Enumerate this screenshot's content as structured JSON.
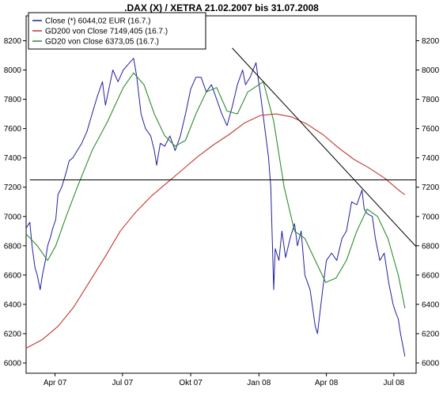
{
  "chart_data": {
    "type": "line",
    "title": ".DAX (X) / XETRA 21.02.2007 bis 31.07.2008",
    "xlabel": "",
    "ylabel": "",
    "x_range": [
      "2007-02-21",
      "2008-07-31"
    ],
    "ylim": [
      5930,
      8370
    ],
    "grid": false,
    "legend_position": "top-left",
    "x_ticks": [
      {
        "date": "2007-04-01",
        "label": "Apr 07"
      },
      {
        "date": "2007-07-01",
        "label": "Jul 07"
      },
      {
        "date": "2007-10-01",
        "label": "Okt 07"
      },
      {
        "date": "2008-01-01",
        "label": "Jan 08"
      },
      {
        "date": "2008-04-01",
        "label": "Apr 08"
      },
      {
        "date": "2008-07-01",
        "label": "Jul 08"
      }
    ],
    "y_ticks": [
      6000,
      6200,
      6400,
      6600,
      6800,
      7000,
      7200,
      7400,
      7600,
      7800,
      8000,
      8200
    ],
    "series": [
      {
        "name": "Close (*) 6044,02 EUR (16.7.)",
        "color": "#2020a0",
        "points": [
          [
            "2007-02-21",
            6920
          ],
          [
            "2007-02-26",
            6960
          ],
          [
            "2007-03-01",
            6800
          ],
          [
            "2007-03-05",
            6650
          ],
          [
            "2007-03-08",
            6600
          ],
          [
            "2007-03-12",
            6500
          ],
          [
            "2007-03-15",
            6600
          ],
          [
            "2007-03-19",
            6700
          ],
          [
            "2007-03-22",
            6800
          ],
          [
            "2007-03-26",
            6860
          ],
          [
            "2007-03-29",
            6920
          ],
          [
            "2007-04-02",
            6980
          ],
          [
            "2007-04-05",
            7150
          ],
          [
            "2007-04-10",
            7200
          ],
          [
            "2007-04-16",
            7300
          ],
          [
            "2007-04-20",
            7380
          ],
          [
            "2007-04-25",
            7400
          ],
          [
            "2007-05-01",
            7450
          ],
          [
            "2007-05-07",
            7500
          ],
          [
            "2007-05-14",
            7580
          ],
          [
            "2007-05-21",
            7700
          ],
          [
            "2007-05-28",
            7820
          ],
          [
            "2007-06-04",
            7920
          ],
          [
            "2007-06-08",
            7760
          ],
          [
            "2007-06-13",
            7880
          ],
          [
            "2007-06-18",
            8000
          ],
          [
            "2007-06-25",
            7920
          ],
          [
            "2007-07-02",
            8000
          ],
          [
            "2007-07-09",
            8040
          ],
          [
            "2007-07-16",
            8080
          ],
          [
            "2007-07-20",
            7960
          ],
          [
            "2007-07-26",
            7700
          ],
          [
            "2007-08-01",
            7600
          ],
          [
            "2007-08-08",
            7550
          ],
          [
            "2007-08-13",
            7450
          ],
          [
            "2007-08-16",
            7350
          ],
          [
            "2007-08-21",
            7500
          ],
          [
            "2007-08-27",
            7480
          ],
          [
            "2007-09-03",
            7550
          ],
          [
            "2007-09-10",
            7450
          ],
          [
            "2007-09-17",
            7550
          ],
          [
            "2007-09-24",
            7700
          ],
          [
            "2007-10-01",
            7870
          ],
          [
            "2007-10-08",
            7950
          ],
          [
            "2007-10-15",
            7950
          ],
          [
            "2007-10-22",
            7850
          ],
          [
            "2007-10-29",
            7900
          ],
          [
            "2007-11-05",
            7800
          ],
          [
            "2007-11-12",
            7700
          ],
          [
            "2007-11-19",
            7620
          ],
          [
            "2007-11-26",
            7750
          ],
          [
            "2007-12-03",
            7900
          ],
          [
            "2007-12-10",
            8000
          ],
          [
            "2007-12-14",
            7900
          ],
          [
            "2007-12-20",
            7950
          ],
          [
            "2007-12-28",
            8050
          ],
          [
            "2008-01-04",
            7800
          ],
          [
            "2008-01-09",
            7600
          ],
          [
            "2008-01-14",
            7400
          ],
          [
            "2008-01-17",
            7200
          ],
          [
            "2008-01-21",
            6500
          ],
          [
            "2008-01-23",
            6780
          ],
          [
            "2008-01-28",
            6700
          ],
          [
            "2008-02-01",
            6900
          ],
          [
            "2008-02-06",
            6720
          ],
          [
            "2008-02-12",
            6850
          ],
          [
            "2008-02-18",
            6950
          ],
          [
            "2008-02-22",
            6800
          ],
          [
            "2008-02-27",
            6900
          ],
          [
            "2008-03-03",
            6600
          ],
          [
            "2008-03-10",
            6500
          ],
          [
            "2008-03-17",
            6250
          ],
          [
            "2008-03-20",
            6200
          ],
          [
            "2008-03-27",
            6500
          ],
          [
            "2008-04-01",
            6700
          ],
          [
            "2008-04-08",
            6750
          ],
          [
            "2008-04-15",
            6700
          ],
          [
            "2008-04-22",
            6850
          ],
          [
            "2008-04-28",
            6900
          ],
          [
            "2008-05-05",
            7100
          ],
          [
            "2008-05-12",
            7080
          ],
          [
            "2008-05-19",
            7180
          ],
          [
            "2008-05-22",
            7050
          ],
          [
            "2008-05-26",
            7020
          ],
          [
            "2008-06-02",
            7000
          ],
          [
            "2008-06-06",
            6850
          ],
          [
            "2008-06-12",
            6700
          ],
          [
            "2008-06-18",
            6750
          ],
          [
            "2008-06-24",
            6550
          ],
          [
            "2008-06-30",
            6400
          ],
          [
            "2008-07-03",
            6350
          ],
          [
            "2008-07-07",
            6300
          ],
          [
            "2008-07-10",
            6200
          ],
          [
            "2008-07-16",
            6044
          ]
        ]
      },
      {
        "name": "GD200 von Close 7149,405 (16.7.)",
        "color": "#c0392b",
        "points": [
          [
            "2007-02-21",
            6100
          ],
          [
            "2007-03-15",
            6160
          ],
          [
            "2007-04-05",
            6250
          ],
          [
            "2007-04-26",
            6380
          ],
          [
            "2007-05-17",
            6550
          ],
          [
            "2007-06-07",
            6720
          ],
          [
            "2007-06-28",
            6900
          ],
          [
            "2007-07-19",
            7030
          ],
          [
            "2007-08-09",
            7140
          ],
          [
            "2007-08-30",
            7230
          ],
          [
            "2007-09-20",
            7320
          ],
          [
            "2007-10-11",
            7410
          ],
          [
            "2007-11-01",
            7490
          ],
          [
            "2007-11-22",
            7560
          ],
          [
            "2007-12-13",
            7640
          ],
          [
            "2008-01-03",
            7690
          ],
          [
            "2008-01-24",
            7700
          ],
          [
            "2008-02-14",
            7680
          ],
          [
            "2008-03-06",
            7630
          ],
          [
            "2008-03-27",
            7560
          ],
          [
            "2008-04-17",
            7470
          ],
          [
            "2008-05-08",
            7390
          ],
          [
            "2008-05-29",
            7330
          ],
          [
            "2008-06-19",
            7260
          ],
          [
            "2008-07-10",
            7170
          ],
          [
            "2008-07-16",
            7149
          ]
        ]
      },
      {
        "name": "GD20 von Close 6373,05 (16.7.)",
        "color": "#2e8b2e",
        "points": [
          [
            "2007-02-21",
            6880
          ],
          [
            "2007-03-08",
            6800
          ],
          [
            "2007-03-22",
            6700
          ],
          [
            "2007-04-02",
            6800
          ],
          [
            "2007-04-16",
            7000
          ],
          [
            "2007-05-01",
            7200
          ],
          [
            "2007-05-21",
            7450
          ],
          [
            "2007-06-11",
            7650
          ],
          [
            "2007-07-02",
            7880
          ],
          [
            "2007-07-16",
            7980
          ],
          [
            "2007-07-30",
            7900
          ],
          [
            "2007-08-13",
            7700
          ],
          [
            "2007-08-27",
            7550
          ],
          [
            "2007-09-10",
            7480
          ],
          [
            "2007-09-24",
            7520
          ],
          [
            "2007-10-08",
            7700
          ],
          [
            "2007-10-22",
            7850
          ],
          [
            "2007-11-05",
            7880
          ],
          [
            "2007-11-19",
            7720
          ],
          [
            "2007-12-03",
            7700
          ],
          [
            "2007-12-17",
            7850
          ],
          [
            "2008-01-07",
            7920
          ],
          [
            "2008-01-21",
            7650
          ],
          [
            "2008-02-04",
            7200
          ],
          [
            "2008-02-18",
            6900
          ],
          [
            "2008-03-03",
            6850
          ],
          [
            "2008-03-17",
            6700
          ],
          [
            "2008-03-31",
            6550
          ],
          [
            "2008-04-14",
            6580
          ],
          [
            "2008-04-28",
            6700
          ],
          [
            "2008-05-12",
            6900
          ],
          [
            "2008-05-26",
            7050
          ],
          [
            "2008-06-09",
            7000
          ],
          [
            "2008-06-23",
            6850
          ],
          [
            "2008-07-07",
            6600
          ],
          [
            "2008-07-16",
            6373
          ]
        ]
      }
    ],
    "annotation_lines": [
      {
        "id": "support-line",
        "color": "#000000",
        "from": [
          "2007-02-26",
          7250
        ],
        "to": [
          "2008-07-31",
          7250
        ]
      },
      {
        "id": "downtrend-line",
        "color": "#000000",
        "from": [
          "2007-11-26",
          8150
        ],
        "to": [
          "2008-08-10",
          6740
        ]
      }
    ]
  }
}
